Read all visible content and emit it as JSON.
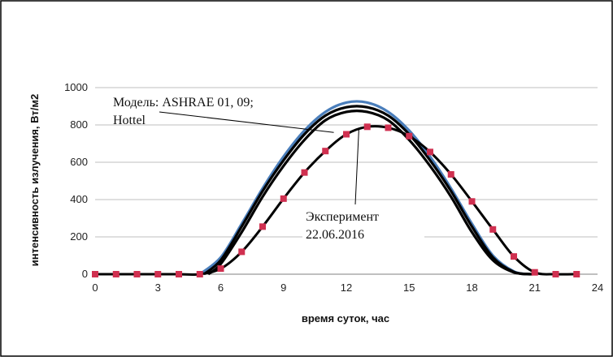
{
  "chart_data": {
    "type": "line",
    "title": "",
    "xlabel": "время суток, час",
    "ylabel": "интенсивность излучения, Вт/м2",
    "xlim": [
      0,
      24
    ],
    "ylim": [
      0,
      1000
    ],
    "x_ticks": [
      0,
      3,
      6,
      9,
      12,
      15,
      18,
      21,
      24
    ],
    "y_ticks": [
      0,
      200,
      400,
      600,
      800,
      1000
    ],
    "grid": "horizontal",
    "legend": "none",
    "series": [
      {
        "color": "#4a7ebb",
        "x": [
          5,
          6,
          7,
          8,
          9,
          10,
          11,
          12,
          13,
          14,
          15,
          16,
          17,
          18,
          19,
          20,
          20.7
        ],
        "values": [
          0,
          90,
          270,
          460,
          630,
          770,
          870,
          920,
          920,
          870,
          770,
          630,
          460,
          270,
          100,
          15,
          0
        ]
      },
      {
        "color": "#000000",
        "x": [
          5.2,
          6,
          7,
          8,
          9,
          10,
          11,
          12,
          13,
          14,
          15,
          16,
          17,
          18,
          19,
          20,
          20.8
        ],
        "values": [
          0,
          75,
          255,
          445,
          610,
          750,
          850,
          895,
          895,
          850,
          750,
          610,
          445,
          255,
          90,
          12,
          0
        ]
      },
      {
        "color": "#000000",
        "x": [
          5.4,
          6,
          7,
          8,
          9,
          10,
          11,
          12,
          13,
          14,
          15,
          16,
          17,
          18,
          19,
          20,
          20.9
        ],
        "values": [
          0,
          55,
          225,
          415,
          580,
          720,
          825,
          870,
          870,
          825,
          720,
          580,
          415,
          225,
          75,
          10,
          0
        ]
      },
      {
        "color": "#000000",
        "markers": "square",
        "marker_color": "#d03050",
        "x": [
          0,
          1,
          2,
          3,
          4,
          5,
          6,
          7,
          8,
          9,
          10,
          11,
          12,
          13,
          14,
          15,
          16,
          17,
          18,
          19,
          20,
          21,
          22,
          23
        ],
        "values": [
          0,
          0,
          0,
          0,
          0,
          0,
          30,
          120,
          255,
          405,
          545,
          660,
          750,
          790,
          785,
          740,
          655,
          535,
          390,
          240,
          95,
          10,
          0,
          0
        ]
      }
    ],
    "annotations": [
      {
        "lines": [
          "Модель: ASHRAE 01, 09;",
          "Hottel"
        ],
        "arrow_to": [
          11.4,
          760
        ]
      },
      {
        "lines": [
          "Эксперимент",
          "22.06.2016"
        ],
        "arrow_to": [
          12.6,
          790
        ]
      }
    ]
  }
}
